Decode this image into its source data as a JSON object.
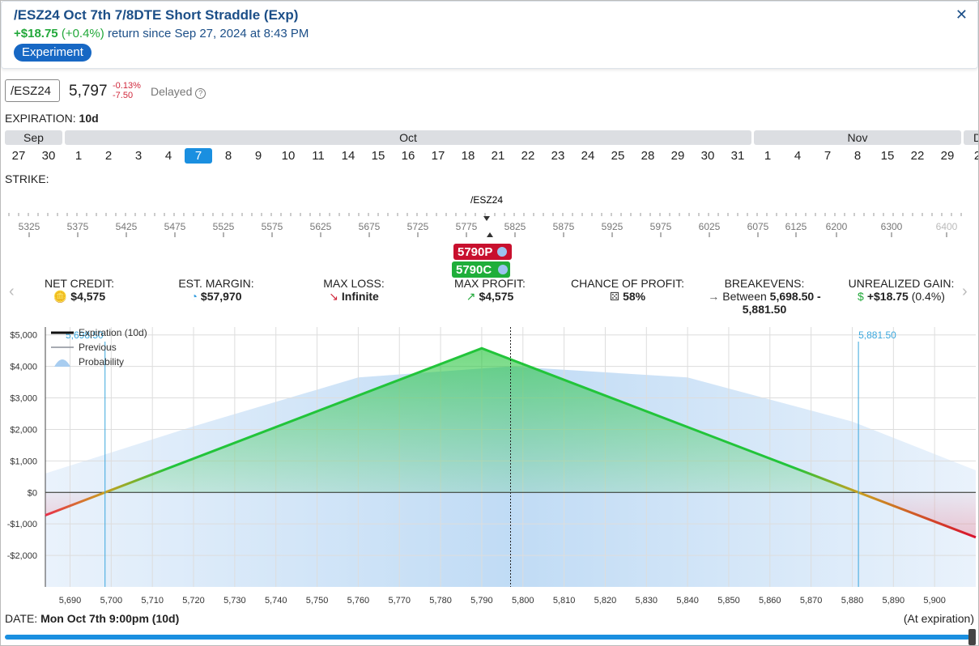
{
  "header": {
    "title": "/ESZ24 Oct 7th 7/8DTE Short Straddle (Exp)",
    "return_amount": "+$18.75",
    "return_pct": "(+0.4%)",
    "return_text": "return since Sep 27, 2024 at 8:43 PM",
    "tag": "Experiment"
  },
  "quote": {
    "symbol": "/ESZ24",
    "price": "5,797",
    "change_pct": "-0.13%",
    "change": "-7.50",
    "status": "Delayed"
  },
  "expiration": {
    "label": "EXPIRATION:",
    "value": "10d",
    "selected": [
      1,
      4
    ],
    "months": [
      {
        "name": "Sep",
        "days": [
          27,
          30
        ]
      },
      {
        "name": "Oct",
        "days": [
          1,
          2,
          3,
          4,
          7,
          8,
          9,
          10,
          11,
          14,
          15,
          16,
          17,
          18,
          21,
          22,
          23,
          24,
          25,
          28,
          29,
          30,
          31
        ]
      },
      {
        "name": "Nov",
        "days": [
          1,
          4,
          7,
          8,
          15,
          22,
          29
        ]
      },
      {
        "name": "D",
        "days": [
          2
        ]
      }
    ]
  },
  "strike": {
    "label": "STRIKE:",
    "underlying": "/ESZ24",
    "ticks": [
      "5325",
      "5375",
      "5425",
      "5475",
      "5525",
      "5575",
      "5625",
      "5675",
      "5725",
      "5775",
      "5825",
      "5875",
      "5925",
      "5975",
      "6025",
      "6075",
      "6125",
      "6200",
      "6300",
      "6400"
    ],
    "legs": [
      "5790P",
      "5790C"
    ]
  },
  "stats": [
    {
      "label": "NET CREDIT:",
      "value": "$4,575"
    },
    {
      "label": "EST. MARGIN:",
      "value": "$57,970"
    },
    {
      "label": "MAX LOSS:",
      "value": "Infinite"
    },
    {
      "label": "MAX PROFIT:",
      "value": "$4,575"
    },
    {
      "label": "CHANCE OF PROFIT:",
      "value": "58%"
    },
    {
      "label": "BREAKEVENS:",
      "prefix": "Between",
      "value": "5,698.50 - 5,881.50"
    },
    {
      "label": "UNREALIZED GAIN:",
      "value": "+$18.75",
      "note": "(0.4%)"
    }
  ],
  "chart_data": {
    "type": "line",
    "xlim": [
      5684,
      5910
    ],
    "ylim": [
      -3000,
      5250
    ],
    "xticks": [
      {
        "value": 5690,
        "label": "5,690"
      },
      {
        "value": 5700,
        "label": "5,700"
      },
      {
        "value": 5710,
        "label": "5,710"
      },
      {
        "value": 5720,
        "label": "5,720"
      },
      {
        "value": 5730,
        "label": "5,730"
      },
      {
        "value": 5740,
        "label": "5,740"
      },
      {
        "value": 5750,
        "label": "5,750"
      },
      {
        "value": 5760,
        "label": "5,760"
      },
      {
        "value": 5770,
        "label": "5,770"
      },
      {
        "value": 5780,
        "label": "5,780"
      },
      {
        "value": 5790,
        "label": "5,790"
      },
      {
        "value": 5800,
        "label": "5,800"
      },
      {
        "value": 5810,
        "label": "5,810"
      },
      {
        "value": 5820,
        "label": "5,820"
      },
      {
        "value": 5830,
        "label": "5,830"
      },
      {
        "value": 5840,
        "label": "5,840"
      },
      {
        "value": 5850,
        "label": "5,850"
      },
      {
        "value": 5860,
        "label": "5,860"
      },
      {
        "value": 5870,
        "label": "5,870"
      },
      {
        "value": 5880,
        "label": "5,880"
      },
      {
        "value": 5890,
        "label": "5,890"
      },
      {
        "value": 5900,
        "label": "5,900"
      }
    ],
    "yticks": [
      {
        "value": -2000,
        "label": "-$2,000"
      },
      {
        "value": -1000,
        "label": "-$1,000"
      },
      {
        "value": 0,
        "label": "$0"
      },
      {
        "value": 1000,
        "label": "$1,000"
      },
      {
        "value": 2000,
        "label": "$2,000"
      },
      {
        "value": 3000,
        "label": "$3,000"
      },
      {
        "value": 4000,
        "label": "$4,000"
      },
      {
        "value": 5000,
        "label": "$5,000"
      }
    ],
    "series": [
      {
        "name": "Expiration (10d)",
        "color": "#22c43a",
        "x": [
          5684,
          5698.5,
          5790,
          5881.5,
          5910
        ],
        "values": [
          -725,
          0,
          4575,
          0,
          -1425
        ]
      },
      {
        "name": "Previous",
        "color": "#8a8f99"
      },
      {
        "name": "Probability",
        "color": "#a8cdf0",
        "x": [
          5684,
          5720,
          5760,
          5797,
          5840,
          5880,
          5910
        ],
        "values": [
          600,
          2100,
          3650,
          4000,
          3650,
          2250,
          700
        ]
      }
    ],
    "breakevens": [
      {
        "value": 5698.5,
        "label": "5,698.50"
      },
      {
        "value": 5881.5,
        "label": "5,881.50"
      }
    ],
    "current_price": 5797,
    "grid": true
  },
  "footer": {
    "date_label": "DATE:",
    "date": "Mon Oct 7th 9:00pm (10d)",
    "note": "(At expiration)"
  }
}
